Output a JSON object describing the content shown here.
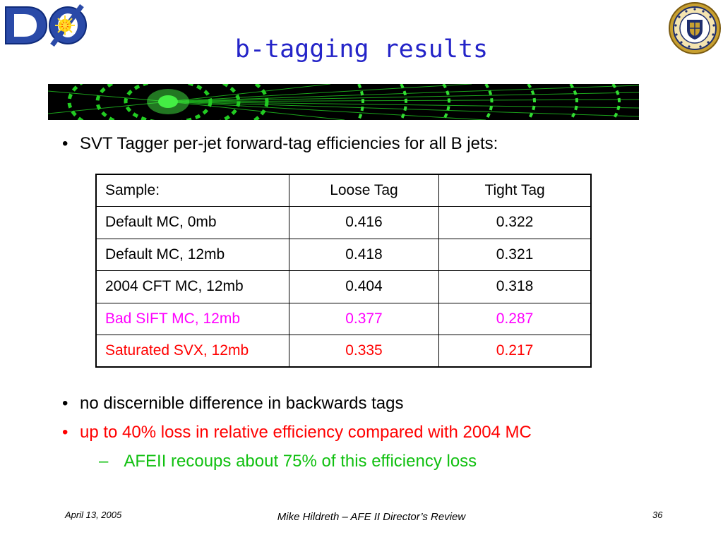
{
  "header": {
    "title": "b-tagging results",
    "logo_left": "DØ",
    "logo_right": "University of Notre Dame"
  },
  "intro_bullet": "SVT Tagger per-jet forward-tag efficiencies for all B jets:",
  "table": {
    "headers": [
      "Sample:",
      "Loose Tag",
      "Tight Tag"
    ],
    "rows": [
      {
        "sample": "Default MC, 0mb",
        "loose": "0.416",
        "tight": "0.322"
      },
      {
        "sample": "Default MC, 12mb",
        "loose": "0.418",
        "tight": "0.321"
      },
      {
        "sample": "2004 CFT MC, 12mb",
        "loose": "0.404",
        "tight": "0.318"
      },
      {
        "sample": "Bad SIFT MC, 12mb",
        "loose": "0.377",
        "tight": "0.287"
      },
      {
        "sample": "Saturated SVX, 12mb",
        "loose": "0.335",
        "tight": "0.217"
      }
    ]
  },
  "bullets": [
    "no discernible difference in backwards tags",
    "up to 40% loss in relative efficiency compared with 2004 MC"
  ],
  "sub_bullet": "AFEII recoups about 75% of this efficiency loss",
  "footer": {
    "date": "April 13, 2005",
    "center": "Mike Hildreth – AFE II Director’s Review",
    "page": "36"
  },
  "colors": {
    "title": "#2424c8",
    "highlight_magenta": "#ff00ff",
    "highlight_red": "#ff0000",
    "sub_bullet": "#10c010",
    "banner_green": "#22cc22"
  }
}
